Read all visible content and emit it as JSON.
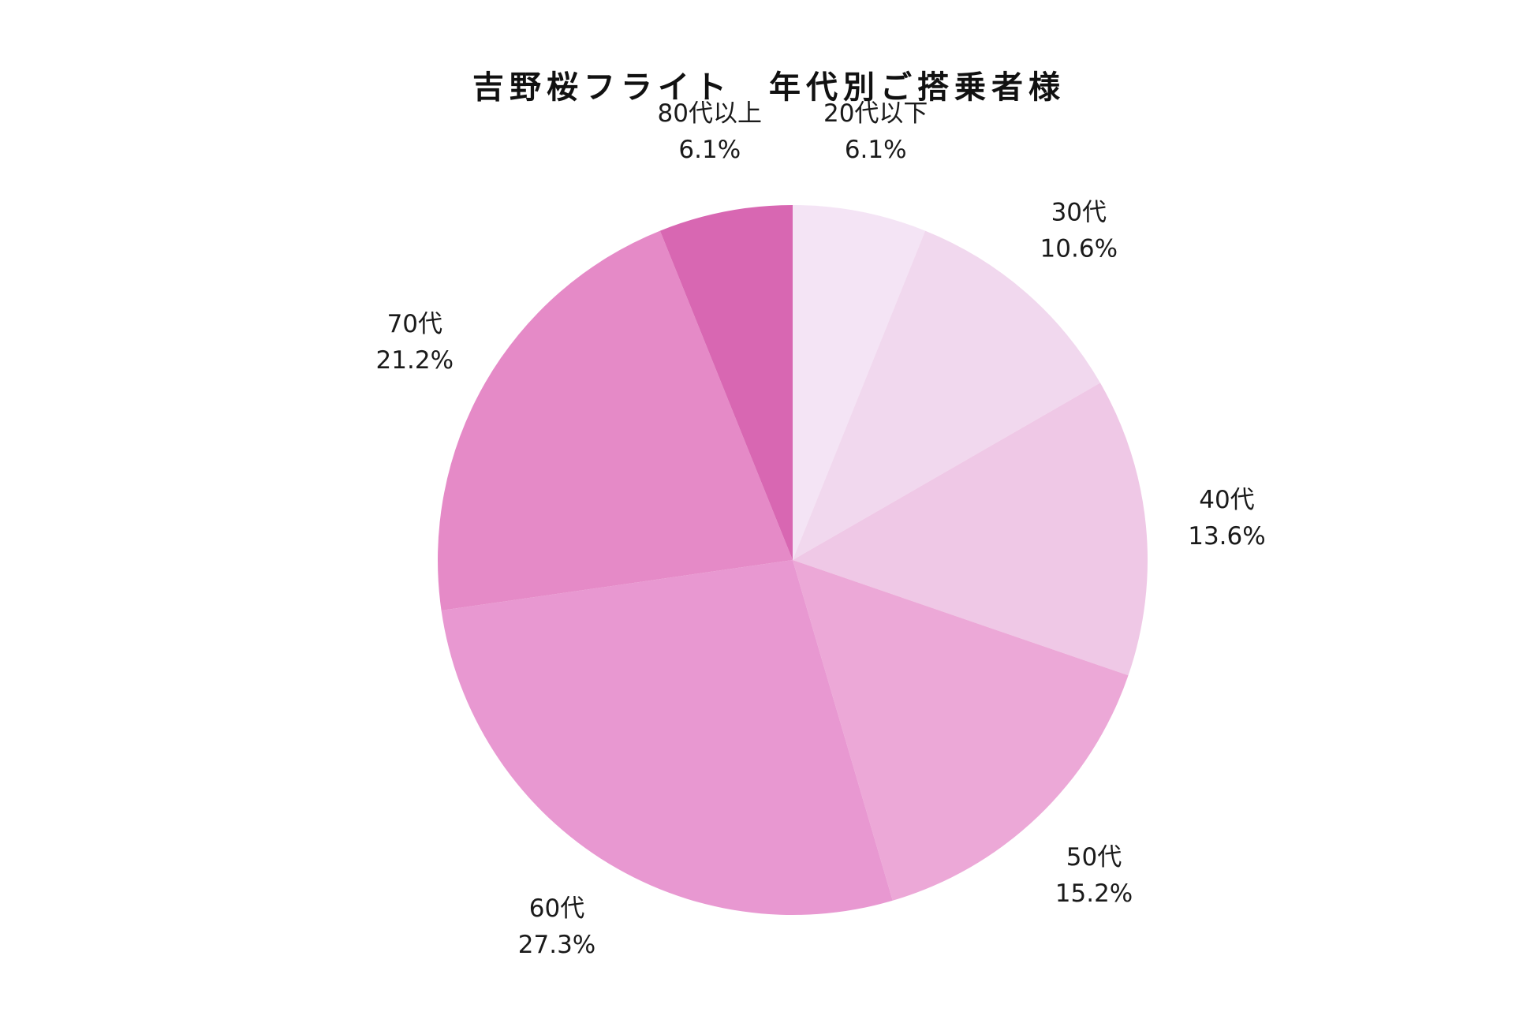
{
  "chart_data": {
    "type": "pie",
    "title": "吉野桜フライト　年代別ご搭乗者様",
    "start_angle": "12 o'clock",
    "direction": "clockwise",
    "slices": [
      {
        "label": "20代以下",
        "value": 6.1,
        "value_label": "6.1%",
        "color": "#f4e4f5"
      },
      {
        "label": "30代",
        "value": 10.6,
        "value_label": "10.6%",
        "color": "#f1d8ee"
      },
      {
        "label": "40代",
        "value": 13.6,
        "value_label": "13.6%",
        "color": "#efc8e6"
      },
      {
        "label": "50代",
        "value": 15.2,
        "value_label": "15.2%",
        "color": "#eca8d7"
      },
      {
        "label": "60代",
        "value": 27.3,
        "value_label": "27.3%",
        "color": "#e898d1"
      },
      {
        "label": "70代",
        "value": 21.2,
        "value_label": "21.2%",
        "color": "#e58ac7"
      },
      {
        "label": "80代以上",
        "value": 6.1,
        "value_label": "6.1%",
        "color": "#d867b2"
      }
    ]
  }
}
